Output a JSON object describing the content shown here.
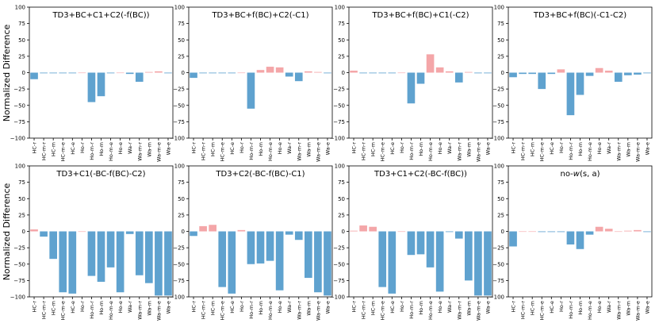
{
  "figure": {
    "ylabel": "Normalized Difference",
    "positive_color": "#f4a6a8",
    "negative_color": "#5fa2cf"
  },
  "chart_data": [
    {
      "type": "bar",
      "title": "TD3+BC+C1+C2(-f(BC))",
      "categories": [
        "HC-r",
        "HC-m-r",
        "HC-m",
        "HC-m-e",
        "HC-e",
        "Ho-r",
        "Ho-m-r",
        "Ho-m",
        "Ho-m-e",
        "Ho-e",
        "Wa-r",
        "Wa-m-r",
        "Wa-m",
        "Wa-m-e",
        "Wa-e"
      ],
      "values": [
        -10,
        -1,
        -1,
        -1,
        -1,
        0,
        -45,
        -36,
        -1,
        0,
        -2,
        -14,
        1,
        2,
        -1
      ],
      "ylim": [
        -100,
        100
      ],
      "yticks": [
        -100,
        -75,
        -50,
        -25,
        0,
        25,
        50,
        75,
        100
      ]
    },
    {
      "type": "bar",
      "title": "TD3+BC+f(BC)+C2(-C1)",
      "categories": [
        "HC-r",
        "HC-m-r",
        "HC-m",
        "HC-m-e",
        "HC-e",
        "Ho-r",
        "Ho-m-r",
        "Ho-m",
        "Ho-m-e",
        "Ho-e",
        "Wa-r",
        "Wa-m-r",
        "Wa-m",
        "Wa-m-e",
        "Wa-e"
      ],
      "values": [
        -8,
        -1,
        -1,
        -1,
        -1,
        0,
        -55,
        4,
        9,
        8,
        -6,
        -13,
        2,
        1,
        -1
      ],
      "ylim": [
        -100,
        100
      ],
      "yticks": [
        -100,
        -75,
        -50,
        -25,
        0,
        25,
        50,
        75,
        100
      ]
    },
    {
      "type": "bar",
      "title": "TD3+BC+f(BC)+C1(-C2)",
      "categories": [
        "HC-r",
        "HC-m-r",
        "HC-m",
        "HC-m-e",
        "HC-e",
        "Ho-r",
        "Ho-m-r",
        "Ho-m",
        "Ho-m-e",
        "Ho-e",
        "Wa-r",
        "Wa-m-r",
        "Wa-m",
        "Wa-m-e",
        "Wa-e"
      ],
      "values": [
        3,
        -1,
        -1,
        -1,
        -1,
        0,
        -47,
        -17,
        28,
        8,
        2,
        -15,
        1,
        -1,
        -1
      ],
      "ylim": [
        -100,
        100
      ],
      "yticks": [
        -100,
        -75,
        -50,
        -25,
        0,
        25,
        50,
        75,
        100
      ]
    },
    {
      "type": "bar",
      "title": "TD3+BC+f(BC)(-C1-C2)",
      "categories": [
        "HC-r",
        "HC-m-r",
        "HC-m",
        "HC-m-e",
        "HC-e",
        "Ho-r",
        "Ho-m-r",
        "Ho-m",
        "Ho-m-e",
        "Ho-e",
        "Wa-r",
        "Wa-m-r",
        "Wa-m",
        "Wa-m-e",
        "Wa-e"
      ],
      "values": [
        -7,
        -2,
        -2,
        -25,
        -2,
        5,
        -65,
        -34,
        -5,
        7,
        3,
        -14,
        -4,
        -3,
        -1
      ],
      "ylim": [
        -100,
        100
      ],
      "yticks": [
        -100,
        -75,
        -50,
        -25,
        0,
        25,
        50,
        75,
        100
      ]
    },
    {
      "type": "bar",
      "title": "TD3+C1(-BC-f(BC)-C2)",
      "categories": [
        "HC-r",
        "HC-m-r",
        "HC-m",
        "HC-m-e",
        "HC-e",
        "Ho-r",
        "Ho-m-r",
        "Ho-m",
        "Ho-m-e",
        "Ho-e",
        "Wa-r",
        "Wa-m-r",
        "Wa-m",
        "Wa-m-e",
        "Wa-e"
      ],
      "values": [
        3,
        -8,
        -42,
        -93,
        -95,
        0,
        -68,
        -77,
        -55,
        -93,
        -4,
        -67,
        -79,
        -98,
        -98
      ],
      "ylim": [
        -100,
        100
      ],
      "yticks": [
        -100,
        -75,
        -50,
        -25,
        0,
        25,
        50,
        75,
        100
      ]
    },
    {
      "type": "bar",
      "title": "TD3+C2(-BC-f(BC)-C1)",
      "categories": [
        "HC-r",
        "HC-m-r",
        "HC-m",
        "HC-m-e",
        "HC-e",
        "Ho-r",
        "Ho-m-r",
        "Ho-m",
        "Ho-m-e",
        "Ho-e",
        "Wa-r",
        "Wa-m-r",
        "Wa-m",
        "Wa-m-e",
        "Wa-e"
      ],
      "values": [
        -7,
        8,
        10,
        -85,
        -95,
        2,
        -50,
        -49,
        -45,
        -90,
        -5,
        -13,
        -71,
        -93,
        -98
      ],
      "ylim": [
        -100,
        100
      ],
      "yticks": [
        -100,
        -75,
        -50,
        -25,
        0,
        25,
        50,
        75,
        100
      ]
    },
    {
      "type": "bar",
      "title": "TD3+C1+C2(-BC-f(BC))",
      "categories": [
        "HC-r",
        "HC-m-r",
        "HC-m",
        "HC-m-e",
        "HC-e",
        "Ho-r",
        "Ho-m-r",
        "Ho-m",
        "Ho-m-e",
        "Ho-e",
        "Wa-r",
        "Wa-m-r",
        "Wa-m",
        "Wa-m-e",
        "Wa-e"
      ],
      "values": [
        1,
        9,
        7,
        -85,
        -95,
        0,
        -36,
        -35,
        -55,
        -92,
        -1,
        -11,
        -75,
        -98,
        -98
      ],
      "ylim": [
        -100,
        100
      ],
      "yticks": [
        -100,
        -75,
        -50,
        -25,
        0,
        25,
        50,
        75,
        100
      ]
    },
    {
      "type": "bar",
      "title": "no-w(s, a)",
      "categories": [
        "HC-r",
        "HC-m-r",
        "HC-m",
        "HC-m-e",
        "HC-e",
        "Ho-r",
        "Ho-m-r",
        "Ho-m",
        "Ho-m-e",
        "Ho-e",
        "Wa-r",
        "Wa-m-r",
        "Wa-m",
        "Wa-m-e",
        "Wa-e"
      ],
      "values": [
        -23,
        0,
        0,
        -1,
        -1,
        -1,
        -20,
        -27,
        -5,
        7,
        4,
        0,
        1,
        2,
        -1
      ],
      "ylim": [
        -100,
        100
      ],
      "yticks": [
        -100,
        -75,
        -50,
        -25,
        0,
        25,
        50,
        75,
        100
      ]
    }
  ]
}
